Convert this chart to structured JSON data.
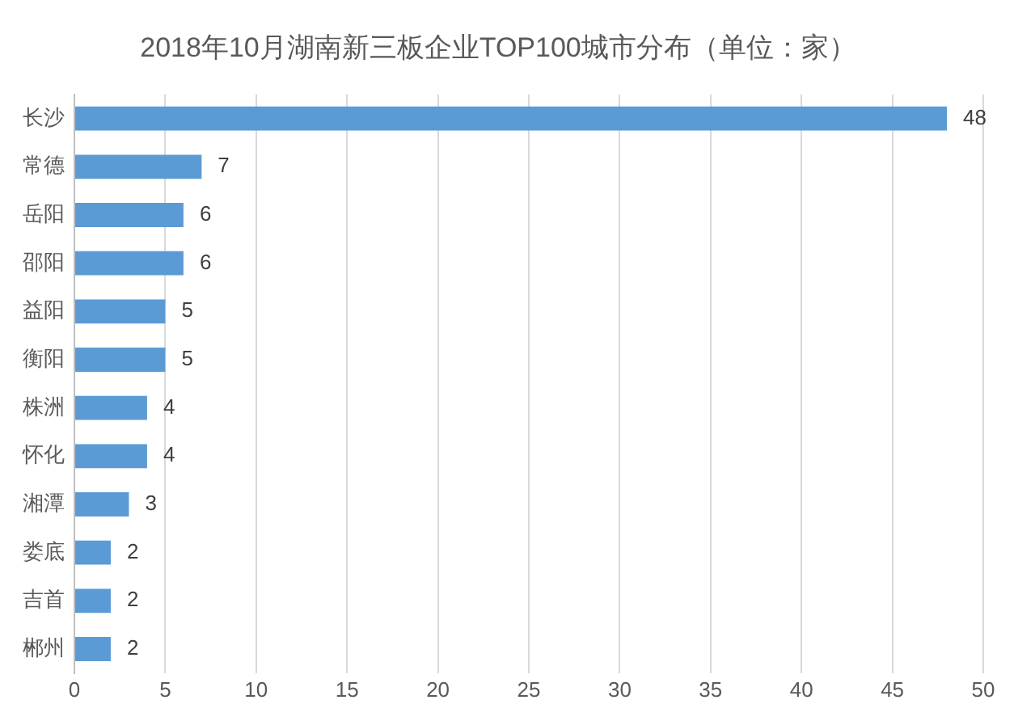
{
  "chart_data": {
    "type": "bar",
    "orientation": "horizontal",
    "title": "2018年10月湖南新三板企业TOP100城市分布（单位：家）",
    "categories": [
      "长沙",
      "常德",
      "岳阳",
      "邵阳",
      "益阳",
      "衡阳",
      "株洲",
      "怀化",
      "湘潭",
      "娄底",
      "吉首",
      "郴州"
    ],
    "values": [
      48,
      7,
      6,
      6,
      5,
      5,
      4,
      4,
      3,
      2,
      2,
      2
    ],
    "color": "#5b9bd5",
    "xlim": [
      0,
      50
    ],
    "xticks": [
      0,
      5,
      10,
      15,
      20,
      25,
      30,
      35,
      40,
      45,
      50
    ],
    "grid": "x",
    "data_labels": true,
    "legend": false
  }
}
